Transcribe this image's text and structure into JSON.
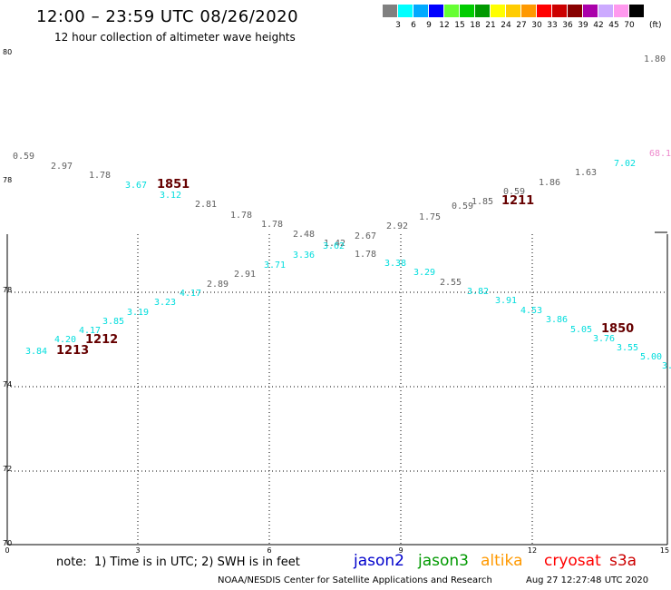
{
  "header": {
    "title": "12:00 – 23:59 UTC 08/26/2020",
    "subtitle": "12 hour collection of altimeter wave heights"
  },
  "legend": {
    "unit": "(ft)",
    "swatches": [
      {
        "color": "#808080",
        "label": "3"
      },
      {
        "color": "#00ffff",
        "label": "6"
      },
      {
        "color": "#00aaff",
        "label": "9"
      },
      {
        "color": "#0000ff",
        "label": "12"
      },
      {
        "color": "#66ff33",
        "label": "15"
      },
      {
        "color": "#00cc00",
        "label": "18"
      },
      {
        "color": "#009900",
        "label": "21"
      },
      {
        "color": "#ffff00",
        "label": "24"
      },
      {
        "color": "#ffcc00",
        "label": "27"
      },
      {
        "color": "#ff9900",
        "label": "30"
      },
      {
        "color": "#ff0000",
        "label": "33"
      },
      {
        "color": "#cc0000",
        "label": "36"
      },
      {
        "color": "#880000",
        "label": "39"
      },
      {
        "color": "#aa00aa",
        "label": "42"
      },
      {
        "color": "#ccaaff",
        "label": "45"
      },
      {
        "color": "#ff99ee",
        "label": "70"
      },
      {
        "color": "#000000",
        "label": ""
      }
    ]
  },
  "map": {
    "x_ticks": [
      "0",
      "3",
      "6",
      "9",
      "12",
      "15"
    ],
    "y_labels": [
      "80",
      "78",
      "78",
      "74",
      "72",
      "70"
    ],
    "grid": true,
    "track_colors": {
      "cyan": "#00dddd",
      "gray": "#606060",
      "maroon": "#660000",
      "pink": "#ee88cc"
    },
    "wave_labels": [
      {
        "t": "0.59",
        "c": "gray"
      },
      {
        "t": "2.97",
        "c": "gray"
      },
      {
        "t": "1.78",
        "c": "gray"
      },
      {
        "t": "3.67",
        "c": "cyan"
      },
      {
        "t": "1851",
        "c": "maroon"
      },
      {
        "t": "3.12",
        "c": "cyan"
      },
      {
        "t": "2.81",
        "c": "gray"
      },
      {
        "t": "1.78",
        "c": "gray"
      },
      {
        "t": "1.78",
        "c": "gray"
      },
      {
        "t": "2.48",
        "c": "gray"
      },
      {
        "t": "1.42",
        "c": "gray"
      },
      {
        "t": "2.67",
        "c": "gray"
      },
      {
        "t": "2.92",
        "c": "gray"
      },
      {
        "t": "1.75",
        "c": "gray"
      },
      {
        "t": "0.59",
        "c": "gray"
      },
      {
        "t": "1.85",
        "c": "gray"
      },
      {
        "t": "0.59",
        "c": "gray"
      },
      {
        "t": "1211",
        "c": "maroon"
      },
      {
        "t": "1.86",
        "c": "gray"
      },
      {
        "t": "1.63",
        "c": "gray"
      },
      {
        "t": "7.02",
        "c": "cyan"
      },
      {
        "t": "68.1",
        "c": "pink"
      },
      {
        "t": "1.80",
        "c": "gray"
      },
      {
        "t": "3.84",
        "c": "cyan"
      },
      {
        "t": "4.20",
        "c": "cyan"
      },
      {
        "t": "1213",
        "c": "maroon"
      },
      {
        "t": "4.17",
        "c": "cyan"
      },
      {
        "t": "1212",
        "c": "maroon"
      },
      {
        "t": "3.85",
        "c": "cyan"
      },
      {
        "t": "3.19",
        "c": "cyan"
      },
      {
        "t": "3.23",
        "c": "cyan"
      },
      {
        "t": "4.17",
        "c": "cyan"
      },
      {
        "t": "2.89",
        "c": "gray"
      },
      {
        "t": "2.91",
        "c": "gray"
      },
      {
        "t": "3.71",
        "c": "cyan"
      },
      {
        "t": "3.36",
        "c": "cyan"
      },
      {
        "t": "3.62",
        "c": "cyan"
      },
      {
        "t": "1.78",
        "c": "gray"
      },
      {
        "t": "3.38",
        "c": "cyan"
      },
      {
        "t": "3.29",
        "c": "cyan"
      },
      {
        "t": "2.55",
        "c": "gray"
      },
      {
        "t": "3.82",
        "c": "cyan"
      },
      {
        "t": "3.91",
        "c": "cyan"
      },
      {
        "t": "4.53",
        "c": "cyan"
      },
      {
        "t": "3.86",
        "c": "cyan"
      },
      {
        "t": "5.05",
        "c": "cyan"
      },
      {
        "t": "1850",
        "c": "maroon"
      },
      {
        "t": "3.76",
        "c": "cyan"
      },
      {
        "t": "3.55",
        "c": "cyan"
      },
      {
        "t": "5.00",
        "c": "cyan"
      },
      {
        "t": "3.",
        "c": "cyan"
      }
    ]
  },
  "footer": {
    "note": "note:  1) Time is in UTC; 2) SWH is in feet",
    "satellites": [
      {
        "name": "jason2",
        "color": "#0000cc"
      },
      {
        "name": "jason3",
        "color": "#009900"
      },
      {
        "name": "altika",
        "color": "#ff9900"
      },
      {
        "name": "cryosat",
        "color": "#ff0000"
      },
      {
        "name": "s3a",
        "color": "#cc0000"
      }
    ],
    "credit": "NOAA/NESDIS Center for Satellite Applications and Research",
    "timestamp": "Aug 27 12:27:48 UTC 2020"
  }
}
